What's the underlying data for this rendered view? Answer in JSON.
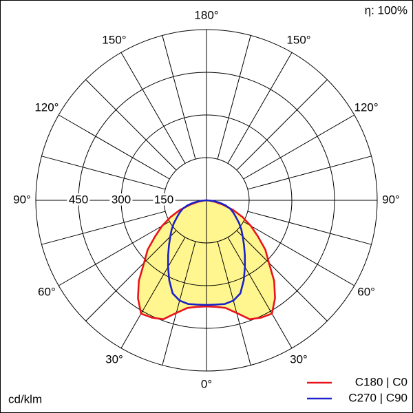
{
  "chart_data": {
    "type": "polar",
    "annotation": "η: 100%",
    "unit_label": "cd/klm",
    "x": [
      0,
      5,
      10,
      15,
      20,
      25,
      30,
      35,
      40,
      45,
      50,
      55,
      60,
      65,
      70,
      75,
      80,
      85,
      90
    ],
    "series": [
      {
        "name": "C180 | C0",
        "color": "#e8141b",
        "fill": "#fff68f",
        "values": [
          373,
          376,
          384,
          410,
          445,
          455,
          460,
          420,
          370,
          310,
          270,
          220,
          180,
          140,
          100,
          60,
          30,
          10,
          0
        ]
      },
      {
        "name": "C270 | C90",
        "color": "#1a22c8",
        "values": [
          368,
          368,
          370,
          365,
          348,
          310,
          270,
          235,
          205,
          180,
          160,
          140,
          120,
          105,
          90,
          70,
          45,
          20,
          0
        ]
      }
    ],
    "rlim": [
      0,
      600
    ],
    "rticks": [
      150,
      300,
      450
    ],
    "aticks": [
      {
        "value": 0,
        "label": "0°"
      },
      {
        "value": 30,
        "label": "30°"
      },
      {
        "value": 60,
        "label": "60°"
      },
      {
        "value": 90,
        "label": "90°"
      },
      {
        "value": 120,
        "label": "120°"
      },
      {
        "value": 150,
        "label": "150°"
      },
      {
        "value": 180,
        "label": "180°"
      }
    ],
    "agrid_step": 15
  }
}
